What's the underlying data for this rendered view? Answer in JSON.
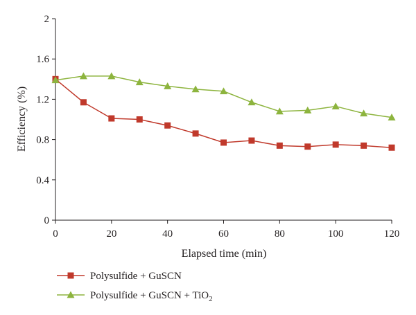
{
  "chart_data": {
    "type": "line",
    "title": "",
    "xlabel": "Elapsed time (min)",
    "ylabel": "Efficiency (%)",
    "xlim": [
      0,
      120
    ],
    "ylim": [
      0,
      2
    ],
    "x_ticks": [
      0,
      20,
      40,
      60,
      80,
      100,
      120
    ],
    "x_tick_labels": [
      "0",
      "20",
      "40",
      "60",
      "80",
      "100",
      "120"
    ],
    "y_ticks": [
      0,
      0.4,
      0.8,
      1.2,
      1.6,
      2
    ],
    "y_tick_labels": [
      "0",
      "0.4",
      "0.8",
      "1.2",
      "1.6",
      "2"
    ],
    "grid": false,
    "legend_position": "bottom-left",
    "x": [
      0,
      10,
      20,
      30,
      40,
      50,
      60,
      70,
      80,
      90,
      100,
      110,
      120
    ],
    "series": [
      {
        "name": "Polysulfide + GuSCN",
        "name_subscript": "",
        "color": "#c0392b",
        "marker": "square",
        "values": [
          1.4,
          1.17,
          1.01,
          1.0,
          0.94,
          0.86,
          0.77,
          0.79,
          0.74,
          0.73,
          0.75,
          0.74,
          0.72
        ]
      },
      {
        "name": "Polysulfide + GuSCN + TiO",
        "name_subscript": "2",
        "color": "#8db43e",
        "marker": "triangle",
        "values": [
          1.39,
          1.43,
          1.43,
          1.37,
          1.33,
          1.3,
          1.28,
          1.17,
          1.08,
          1.09,
          1.13,
          1.06,
          1.02
        ]
      }
    ]
  }
}
